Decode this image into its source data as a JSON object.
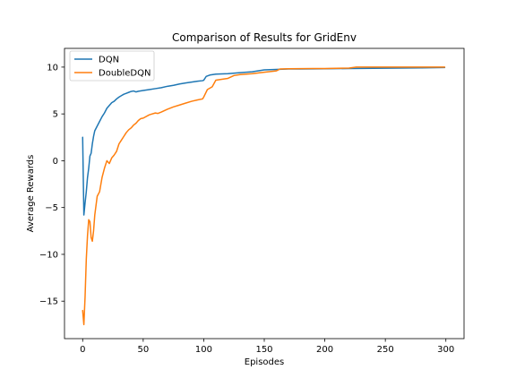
{
  "chart_data": {
    "type": "line",
    "title": "Comparison of Results for GridEnv",
    "xlabel": "Episodes",
    "ylabel": "Average Rewards",
    "xlim": [
      -15,
      315
    ],
    "ylim": [
      -19,
      12
    ],
    "xticks": [
      0,
      50,
      100,
      150,
      200,
      250,
      300
    ],
    "yticks": [
      -15,
      -10,
      -5,
      0,
      5,
      10
    ],
    "grid": false,
    "legend_position": "upper-left",
    "series": [
      {
        "name": "DQN",
        "color": "#1f77b4",
        "points": [
          [
            0,
            2.5
          ],
          [
            1,
            -5.8
          ],
          [
            2,
            -4.5
          ],
          [
            3,
            -3.3
          ],
          [
            4,
            -1.8
          ],
          [
            5,
            -0.8
          ],
          [
            6,
            0.5
          ],
          [
            7,
            0.8
          ],
          [
            8,
            1.8
          ],
          [
            9,
            2.6
          ],
          [
            10,
            3.2
          ],
          [
            12,
            3.7
          ],
          [
            14,
            4.2
          ],
          [
            16,
            4.7
          ],
          [
            18,
            5.1
          ],
          [
            20,
            5.6
          ],
          [
            22,
            5.9
          ],
          [
            24,
            6.2
          ],
          [
            26,
            6.35
          ],
          [
            28,
            6.6
          ],
          [
            30,
            6.8
          ],
          [
            32,
            6.95
          ],
          [
            34,
            7.1
          ],
          [
            36,
            7.2
          ],
          [
            38,
            7.3
          ],
          [
            40,
            7.4
          ],
          [
            42,
            7.45
          ],
          [
            44,
            7.35
          ],
          [
            46,
            7.42
          ],
          [
            50,
            7.5
          ],
          [
            55,
            7.6
          ],
          [
            60,
            7.7
          ],
          [
            65,
            7.8
          ],
          [
            70,
            7.95
          ],
          [
            75,
            8.05
          ],
          [
            80,
            8.2
          ],
          [
            85,
            8.3
          ],
          [
            90,
            8.4
          ],
          [
            95,
            8.5
          ],
          [
            99,
            8.55
          ],
          [
            100,
            8.6
          ],
          [
            102,
            9.0
          ],
          [
            105,
            9.15
          ],
          [
            110,
            9.25
          ],
          [
            120,
            9.3
          ],
          [
            130,
            9.4
          ],
          [
            140,
            9.5
          ],
          [
            150,
            9.7
          ],
          [
            160,
            9.75
          ],
          [
            170,
            9.8
          ],
          [
            180,
            9.8
          ],
          [
            200,
            9.82
          ],
          [
            220,
            9.85
          ],
          [
            240,
            9.87
          ],
          [
            260,
            9.9
          ],
          [
            280,
            9.92
          ],
          [
            299,
            9.95
          ]
        ]
      },
      {
        "name": "DoubleDQN",
        "color": "#ff7f0e",
        "points": [
          [
            0,
            -16
          ],
          [
            1,
            -17.5
          ],
          [
            2,
            -14.5
          ],
          [
            3,
            -10.5
          ],
          [
            4,
            -8
          ],
          [
            5,
            -6.3
          ],
          [
            6,
            -6.5
          ],
          [
            7,
            -8.2
          ],
          [
            8,
            -8.6
          ],
          [
            9,
            -7.5
          ],
          [
            10,
            -5.8
          ],
          [
            12,
            -3.8
          ],
          [
            14,
            -3.3
          ],
          [
            16,
            -1.8
          ],
          [
            18,
            -0.8
          ],
          [
            20,
            0
          ],
          [
            22,
            -0.3
          ],
          [
            24,
            0.3
          ],
          [
            26,
            0.6
          ],
          [
            28,
            1
          ],
          [
            30,
            1.8
          ],
          [
            32,
            2.2
          ],
          [
            34,
            2.6
          ],
          [
            36,
            3
          ],
          [
            38,
            3.3
          ],
          [
            40,
            3.5
          ],
          [
            42,
            3.8
          ],
          [
            44,
            4
          ],
          [
            46,
            4.3
          ],
          [
            48,
            4.5
          ],
          [
            50,
            4.55
          ],
          [
            55,
            4.9
          ],
          [
            60,
            5.1
          ],
          [
            62,
            5.05
          ],
          [
            65,
            5.2
          ],
          [
            70,
            5.5
          ],
          [
            75,
            5.75
          ],
          [
            80,
            5.95
          ],
          [
            85,
            6.15
          ],
          [
            90,
            6.35
          ],
          [
            95,
            6.5
          ],
          [
            99,
            6.6
          ],
          [
            100,
            6.8
          ],
          [
            103,
            7.6
          ],
          [
            107,
            7.9
          ],
          [
            110,
            8.6
          ],
          [
            115,
            8.7
          ],
          [
            120,
            8.8
          ],
          [
            125,
            9.1
          ],
          [
            130,
            9.2
          ],
          [
            140,
            9.3
          ],
          [
            150,
            9.45
          ],
          [
            160,
            9.6
          ],
          [
            163,
            9.8
          ],
          [
            170,
            9.82
          ],
          [
            190,
            9.85
          ],
          [
            200,
            9.85
          ],
          [
            220,
            9.9
          ],
          [
            226,
            10
          ],
          [
            250,
            10
          ],
          [
            270,
            10
          ],
          [
            299,
            10
          ]
        ]
      }
    ]
  }
}
